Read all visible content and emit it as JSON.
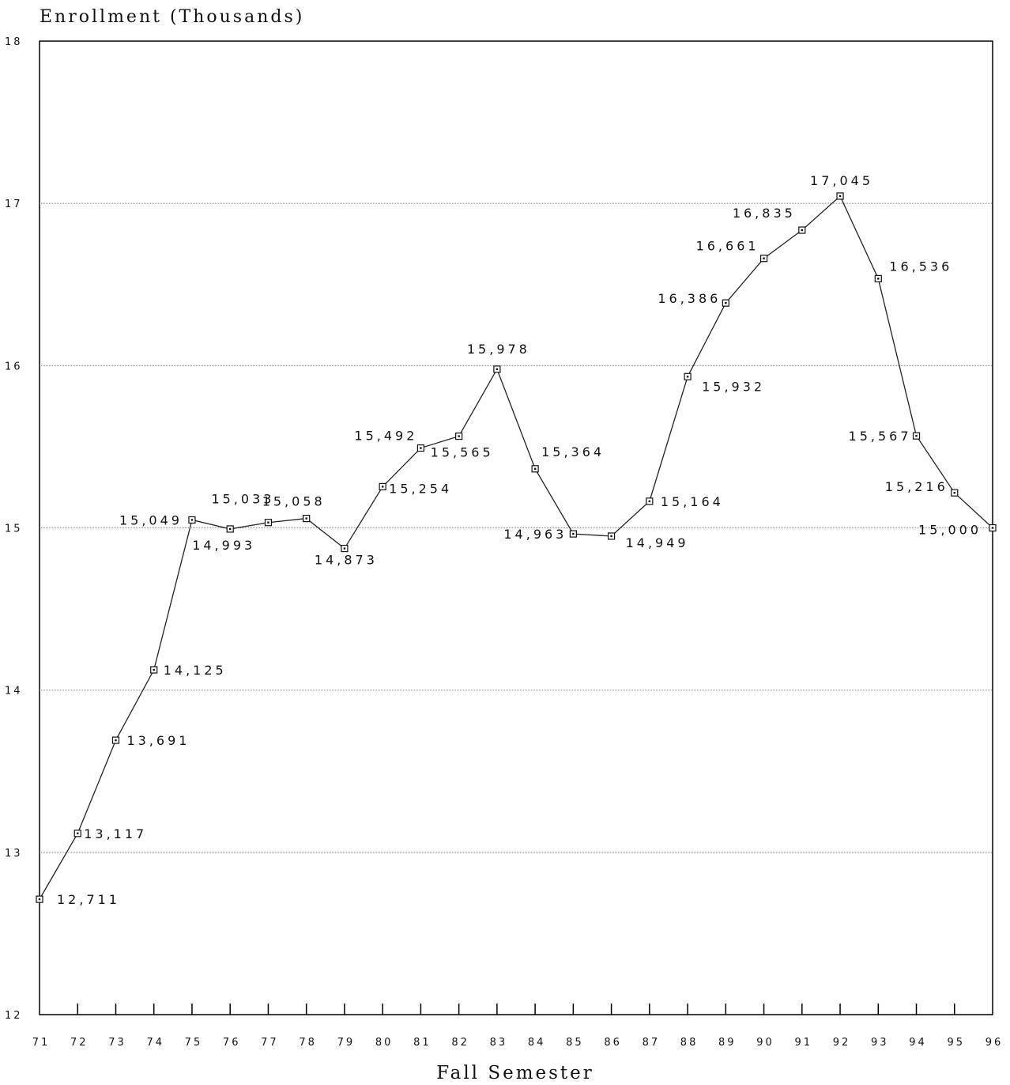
{
  "chart_data": {
    "type": "line",
    "ylabel": "Enrollment (Thousands)",
    "xlabel": "Fall Semester",
    "ylim": [
      12,
      18
    ],
    "yticks": [
      "12",
      "13",
      "14",
      "15",
      "16",
      "17",
      "18"
    ],
    "categories": [
      "71",
      "72",
      "73",
      "74",
      "75",
      "76",
      "77",
      "78",
      "79",
      "80",
      "81",
      "82",
      "83",
      "84",
      "85",
      "86",
      "87",
      "88",
      "89",
      "90",
      "91",
      "92",
      "93",
      "94",
      "95",
      "96"
    ],
    "values": [
      12.711,
      13.117,
      13.691,
      14.125,
      15.049,
      14.993,
      15.033,
      15.058,
      14.873,
      15.254,
      15.492,
      15.565,
      15.978,
      15.364,
      14.963,
      14.949,
      15.164,
      15.932,
      16.386,
      16.661,
      16.835,
      17.045,
      16.536,
      15.567,
      15.216,
      15.0
    ],
    "data_labels": [
      "12,711",
      "13,117",
      "13,691",
      "14,125",
      "15,049",
      "14,993",
      "15,033",
      "15,058",
      "14,873",
      "15,254",
      "15,492",
      "15,565",
      "15,978",
      "15,364",
      "14,963",
      "14,949",
      "15,164",
      "15,932",
      "16,386",
      "16,661",
      "16,835",
      "17,045",
      "16,536",
      "15,567",
      "15,216",
      "15,000"
    ],
    "grid": true
  }
}
